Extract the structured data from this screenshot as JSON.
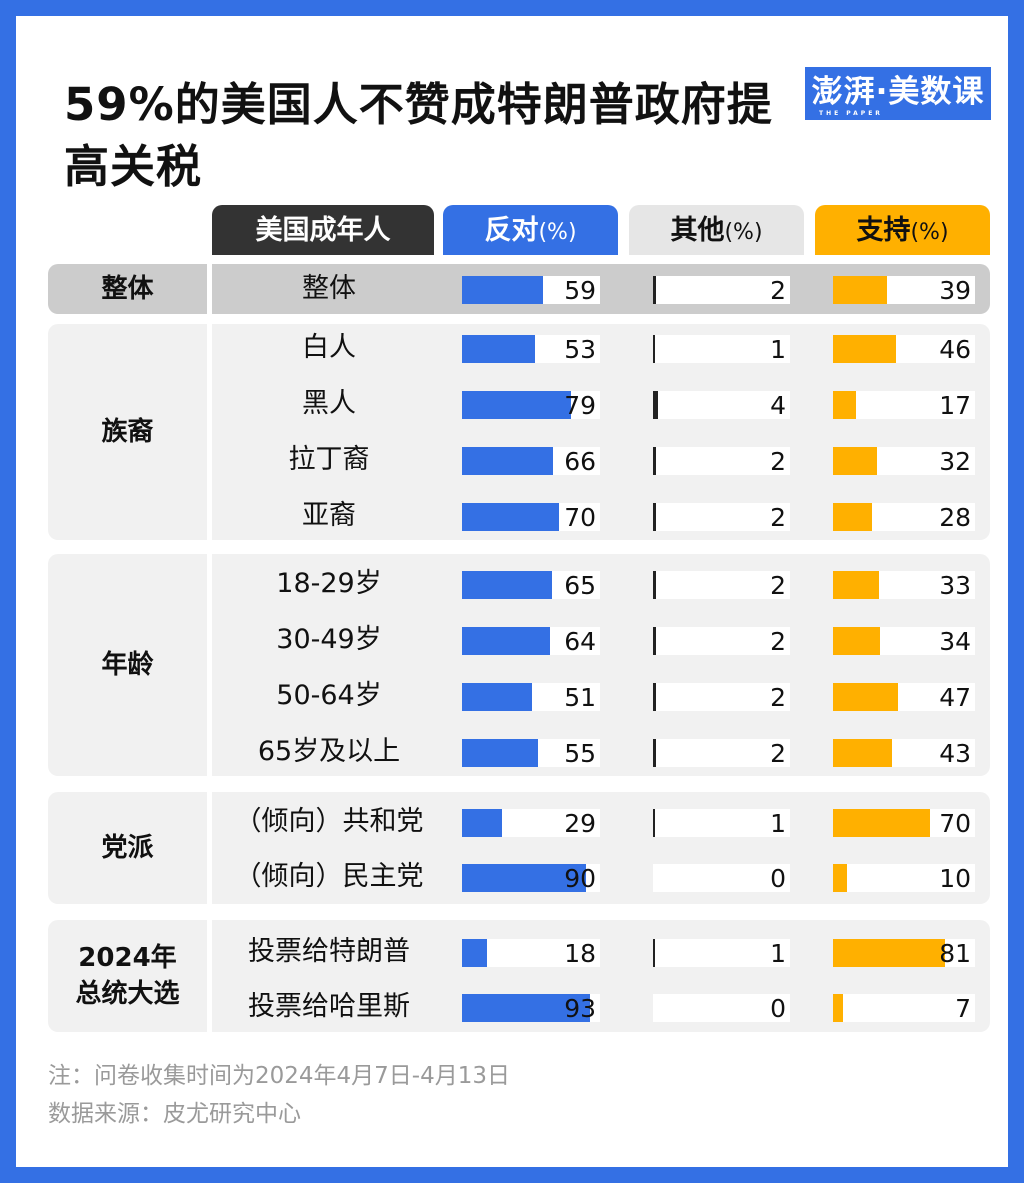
{
  "title": "59%的美国人不赞成特朗普政府提高关税",
  "logo": {
    "text": "澎湃·美数课",
    "sub": "THE PAPER"
  },
  "colors": {
    "oppose": "#3470e4",
    "other": "#222222",
    "support": "#ffb000",
    "frame": "#3470e4"
  },
  "chart_data": {
    "type": "table",
    "title": "59%的美国人不赞成特朗普政府提高关税",
    "columns": [
      {
        "label": "美国成年人",
        "unit": ""
      },
      {
        "label": "反对",
        "unit": "(%)"
      },
      {
        "label": "其他",
        "unit": "(%)"
      },
      {
        "label": "支持",
        "unit": "(%)"
      }
    ],
    "groups": [
      {
        "name": "整体",
        "rows": [
          {
            "label": "整体",
            "oppose": 59,
            "other": 2,
            "support": 39
          }
        ]
      },
      {
        "name": "族裔",
        "rows": [
          {
            "label": "白人",
            "oppose": 53,
            "other": 1,
            "support": 46
          },
          {
            "label": "黑人",
            "oppose": 79,
            "other": 4,
            "support": 17
          },
          {
            "label": "拉丁裔",
            "oppose": 66,
            "other": 2,
            "support": 32
          },
          {
            "label": "亚裔",
            "oppose": 70,
            "other": 2,
            "support": 28
          }
        ]
      },
      {
        "name": "年龄",
        "rows": [
          {
            "label": "18-29岁",
            "oppose": 65,
            "other": 2,
            "support": 33
          },
          {
            "label": "30-49岁",
            "oppose": 64,
            "other": 2,
            "support": 34
          },
          {
            "label": "50-64岁",
            "oppose": 51,
            "other": 2,
            "support": 47
          },
          {
            "label": "65岁及以上",
            "oppose": 55,
            "other": 2,
            "support": 43
          }
        ]
      },
      {
        "name": "党派",
        "rows": [
          {
            "label": "（倾向）共和党",
            "oppose": 29,
            "other": 1,
            "support": 70
          },
          {
            "label": "（倾向）民主党",
            "oppose": 90,
            "other": 0,
            "support": 10
          }
        ]
      },
      {
        "name": "2024年\n总统大选",
        "rows": [
          {
            "label": "投票给特朗普",
            "oppose": 18,
            "other": 1,
            "support": 81
          },
          {
            "label": "投票给哈里斯",
            "oppose": 93,
            "other": 0,
            "support": 7
          }
        ]
      }
    ]
  },
  "notes": [
    "注：问卷收集时间为2024年4月7日-4月13日",
    "数据来源：皮尤研究中心"
  ]
}
